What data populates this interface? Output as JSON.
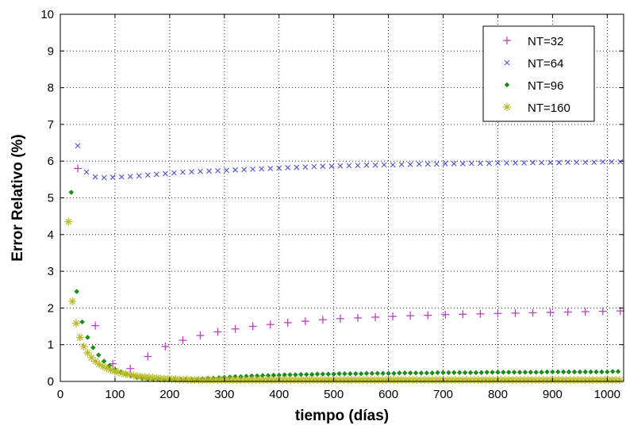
{
  "chart_data": {
    "type": "scatter",
    "title": "",
    "xlabel": "tiempo (días)",
    "ylabel": "Error Relativo (%)",
    "xlim": [
      0,
      1030
    ],
    "ylim": [
      0,
      10
    ],
    "xticks": [
      0,
      100,
      200,
      300,
      400,
      500,
      600,
      700,
      800,
      900,
      1000
    ],
    "yticks": [
      0,
      1,
      2,
      3,
      4,
      5,
      6,
      7,
      8,
      9,
      10
    ],
    "grid": true,
    "legend_position": "top-right",
    "series": [
      {
        "name": "NT=32",
        "marker": "plus",
        "color": "#c040c0",
        "x": [
          32,
          64,
          96,
          128,
          160,
          192,
          224,
          256,
          288,
          320,
          352,
          384,
          416,
          448,
          480,
          512,
          544,
          576,
          608,
          640,
          672,
          704,
          736,
          768,
          800,
          832,
          864,
          896,
          928,
          960,
          992,
          1024
        ],
        "y": [
          5.8,
          1.52,
          0.48,
          0.35,
          0.68,
          0.95,
          1.12,
          1.25,
          1.35,
          1.43,
          1.5,
          1.55,
          1.6,
          1.64,
          1.68,
          1.71,
          1.73,
          1.75,
          1.77,
          1.79,
          1.8,
          1.82,
          1.83,
          1.84,
          1.85,
          1.86,
          1.87,
          1.88,
          1.89,
          1.9,
          1.91,
          1.92
        ]
      },
      {
        "name": "NT=64",
        "marker": "x",
        "color": "#5050d0",
        "x": [
          32,
          48,
          64,
          80,
          96,
          112,
          128,
          144,
          160,
          176,
          192,
          208,
          224,
          240,
          256,
          272,
          288,
          304,
          320,
          336,
          352,
          368,
          384,
          400,
          416,
          432,
          448,
          464,
          480,
          496,
          512,
          528,
          544,
          560,
          576,
          592,
          608,
          624,
          640,
          656,
          672,
          688,
          704,
          720,
          736,
          752,
          768,
          784,
          800,
          816,
          832,
          848,
          864,
          880,
          896,
          912,
          928,
          944,
          960,
          976,
          992,
          1008,
          1024
        ],
        "y": [
          6.42,
          5.7,
          5.57,
          5.55,
          5.56,
          5.57,
          5.58,
          5.6,
          5.62,
          5.64,
          5.66,
          5.68,
          5.7,
          5.71,
          5.72,
          5.73,
          5.74,
          5.75,
          5.76,
          5.77,
          5.78,
          5.79,
          5.8,
          5.81,
          5.82,
          5.83,
          5.84,
          5.85,
          5.86,
          5.86,
          5.87,
          5.88,
          5.88,
          5.89,
          5.89,
          5.9,
          5.9,
          5.91,
          5.91,
          5.92,
          5.92,
          5.92,
          5.93,
          5.93,
          5.93,
          5.94,
          5.94,
          5.94,
          5.95,
          5.95,
          5.95,
          5.95,
          5.96,
          5.96,
          5.96,
          5.96,
          5.97,
          5.97,
          5.97,
          5.97,
          5.98,
          5.98,
          5.98
        ]
      },
      {
        "name": "NT=96",
        "marker": "dot",
        "color": "#1a8c1a",
        "x": [
          20,
          30,
          40,
          50,
          60,
          70,
          80,
          90,
          100,
          110,
          120,
          130,
          140,
          150,
          160,
          170,
          180,
          190,
          200,
          210,
          220,
          230,
          240,
          250,
          260,
          270,
          280,
          290,
          300,
          310,
          320,
          330,
          340,
          350,
          360,
          370,
          380,
          390,
          400,
          410,
          420,
          430,
          440,
          450,
          460,
          470,
          480,
          490,
          500,
          510,
          520,
          530,
          540,
          550,
          560,
          570,
          580,
          590,
          600,
          610,
          620,
          630,
          640,
          650,
          660,
          670,
          680,
          690,
          700,
          710,
          720,
          730,
          740,
          750,
          760,
          770,
          780,
          790,
          800,
          810,
          820,
          830,
          840,
          850,
          860,
          870,
          880,
          890,
          900,
          910,
          920,
          930,
          940,
          950,
          960,
          970,
          980,
          990,
          1000,
          1010,
          1020
        ],
        "y": [
          5.15,
          2.45,
          1.62,
          1.2,
          0.92,
          0.72,
          0.55,
          0.43,
          0.33,
          0.26,
          0.2,
          0.15,
          0.11,
          0.08,
          0.06,
          0.05,
          0.05,
          0.05,
          0.05,
          0.05,
          0.05,
          0.05,
          0.05,
          0.06,
          0.07,
          0.08,
          0.09,
          0.1,
          0.11,
          0.12,
          0.13,
          0.13,
          0.14,
          0.15,
          0.15,
          0.16,
          0.16,
          0.17,
          0.17,
          0.18,
          0.18,
          0.18,
          0.19,
          0.19,
          0.19,
          0.2,
          0.2,
          0.2,
          0.2,
          0.21,
          0.21,
          0.21,
          0.21,
          0.21,
          0.22,
          0.22,
          0.22,
          0.22,
          0.22,
          0.22,
          0.23,
          0.23,
          0.23,
          0.23,
          0.23,
          0.23,
          0.23,
          0.24,
          0.24,
          0.24,
          0.24,
          0.24,
          0.24,
          0.24,
          0.24,
          0.24,
          0.25,
          0.25,
          0.25,
          0.25,
          0.25,
          0.25,
          0.25,
          0.25,
          0.25,
          0.25,
          0.25,
          0.26,
          0.26,
          0.26,
          0.26,
          0.26,
          0.26,
          0.26,
          0.26,
          0.26,
          0.26,
          0.26,
          0.26,
          0.27,
          0.27
        ]
      },
      {
        "name": "NT=160",
        "marker": "star",
        "color": "#b8b820",
        "x": [
          15,
          22,
          29,
          36,
          43,
          50,
          57,
          64,
          71,
          78,
          85,
          92,
          99,
          106,
          113,
          120,
          127,
          134,
          141,
          148,
          155,
          162,
          169,
          176,
          183,
          190,
          197,
          204,
          211,
          218,
          225,
          232,
          239,
          246,
          253,
          260,
          267,
          274,
          281,
          288,
          295,
          302,
          309,
          316,
          323,
          330,
          337,
          344,
          351,
          358,
          365,
          372,
          379,
          386,
          393,
          400,
          407,
          414,
          421,
          428,
          435,
          442,
          449,
          456,
          463,
          470,
          477,
          484,
          491,
          498,
          505,
          512,
          519,
          526,
          533,
          540,
          547,
          554,
          561,
          568,
          575,
          582,
          589,
          596,
          603,
          610,
          617,
          624,
          631,
          638,
          645,
          652,
          659,
          666,
          673,
          680,
          687,
          694,
          701,
          708,
          715,
          722,
          729,
          736,
          743,
          750,
          757,
          764,
          771,
          778,
          785,
          792,
          799,
          806,
          813,
          820,
          827,
          834,
          841,
          848,
          855,
          862,
          869,
          876,
          883,
          890,
          897,
          904,
          911,
          918,
          925,
          932,
          939,
          946,
          953,
          960,
          967,
          974,
          981,
          988,
          995,
          1002,
          1009,
          1016,
          1023
        ],
        "y": [
          4.35,
          2.18,
          1.58,
          1.2,
          0.95,
          0.78,
          0.65,
          0.55,
          0.47,
          0.41,
          0.36,
          0.32,
          0.28,
          0.25,
          0.22,
          0.2,
          0.18,
          0.16,
          0.14,
          0.13,
          0.12,
          0.11,
          0.1,
          0.09,
          0.08,
          0.07,
          0.07,
          0.06,
          0.06,
          0.05,
          0.05,
          0.05,
          0.04,
          0.04,
          0.04,
          0.04,
          0.04,
          0.04,
          0.04,
          0.04,
          0.04,
          0.04,
          0.04,
          0.04,
          0.04,
          0.04,
          0.04,
          0.04,
          0.04,
          0.04,
          0.04,
          0.04,
          0.04,
          0.04,
          0.04,
          0.04,
          0.04,
          0.04,
          0.04,
          0.04,
          0.04,
          0.04,
          0.04,
          0.04,
          0.04,
          0.04,
          0.04,
          0.04,
          0.04,
          0.04,
          0.04,
          0.04,
          0.04,
          0.04,
          0.04,
          0.04,
          0.04,
          0.04,
          0.04,
          0.04,
          0.04,
          0.04,
          0.04,
          0.04,
          0.04,
          0.04,
          0.04,
          0.04,
          0.04,
          0.04,
          0.04,
          0.04,
          0.04,
          0.04,
          0.04,
          0.04,
          0.04,
          0.04,
          0.04,
          0.04,
          0.04,
          0.04,
          0.04,
          0.04,
          0.04,
          0.04,
          0.04,
          0.04,
          0.04,
          0.04,
          0.04,
          0.04,
          0.04,
          0.04,
          0.04,
          0.04,
          0.04,
          0.04,
          0.04,
          0.04,
          0.04,
          0.04,
          0.04,
          0.04,
          0.04,
          0.04,
          0.04,
          0.04,
          0.04,
          0.04,
          0.04,
          0.04,
          0.04,
          0.04,
          0.04,
          0.04,
          0.04,
          0.04,
          0.04,
          0.04,
          0.04,
          0.04,
          0.04,
          0.04,
          0.04
        ]
      }
    ]
  }
}
